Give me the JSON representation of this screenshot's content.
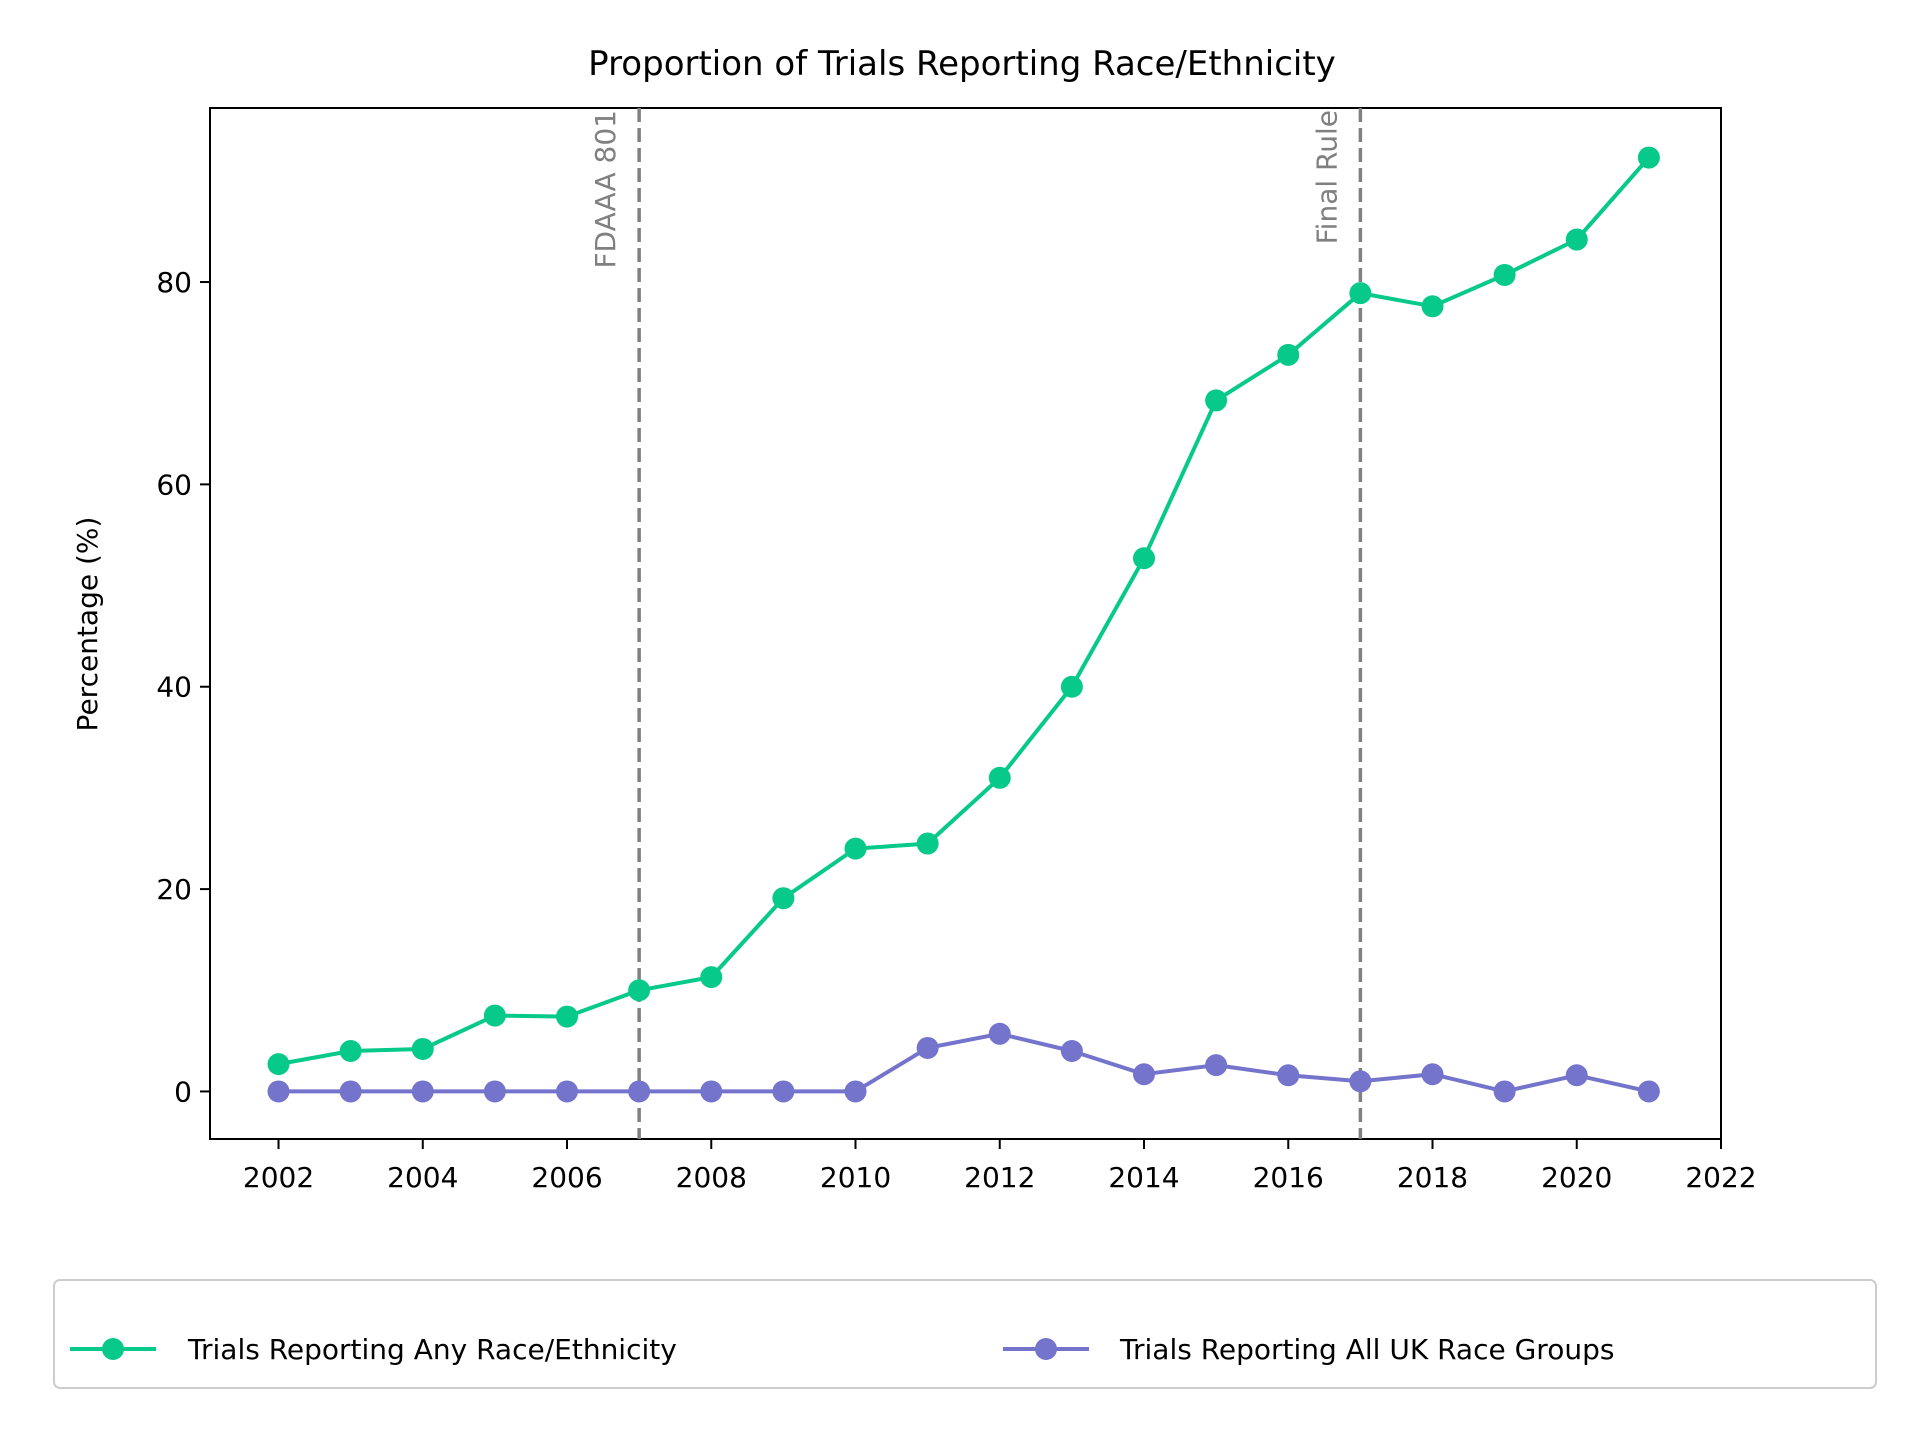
{
  "chart_data": {
    "type": "line",
    "title": "Proportion of Trials Reporting Race/Ethnicity",
    "xlabel": "",
    "ylabel": "Percentage (%)",
    "xlim": [
      2001.05,
      2022
    ],
    "ylim": [
      -4.7,
      97.2
    ],
    "x_ticks": [
      2002,
      2004,
      2006,
      2008,
      2010,
      2012,
      2014,
      2016,
      2018,
      2020,
      2022
    ],
    "y_ticks": [
      0,
      20,
      40,
      60,
      80
    ],
    "grid": false,
    "legend_position": "bottom",
    "x": [
      2002,
      2003,
      2004,
      2005,
      2006,
      2007,
      2008,
      2009,
      2010,
      2011,
      2012,
      2013,
      2014,
      2015,
      2016,
      2017,
      2018,
      2019,
      2020,
      2021
    ],
    "series": [
      {
        "name": "Trials Reporting Any Race/Ethnicity",
        "color": "#06c98a",
        "values": [
          2.7,
          4.0,
          4.2,
          7.5,
          7.4,
          10.0,
          11.3,
          19.1,
          24.0,
          24.5,
          31.0,
          40.0,
          52.7,
          68.3,
          72.8,
          78.9,
          77.6,
          80.7,
          84.2,
          92.3
        ]
      },
      {
        "name": "Trials Reporting All UK Race Groups",
        "color": "#7474cc",
        "values": [
          0,
          0,
          0,
          0,
          0,
          0,
          0,
          0,
          0,
          4.3,
          5.7,
          4.0,
          1.7,
          2.6,
          1.6,
          1.0,
          1.7,
          0,
          1.6,
          0
        ]
      }
    ],
    "annotations": [
      {
        "x": 2007,
        "label": "FDAAA 801",
        "style": "dashed",
        "color": "#808080"
      },
      {
        "x": 2017,
        "label": "Final Rule",
        "style": "dashed",
        "color": "#808080"
      }
    ]
  }
}
